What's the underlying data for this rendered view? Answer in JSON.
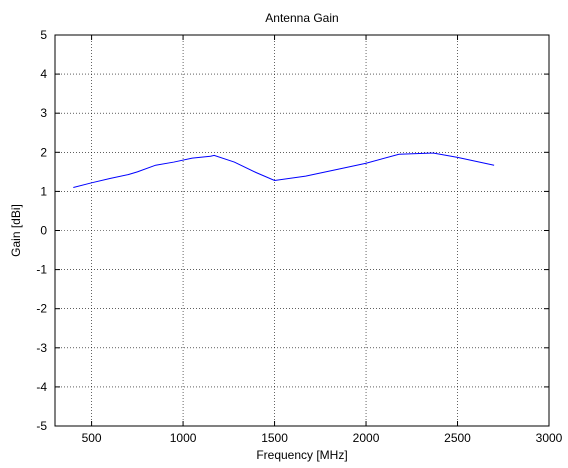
{
  "chart_data": {
    "type": "line",
    "title": "Antenna Gain",
    "xlabel": "Frequency [MHz]",
    "ylabel": "Gain [dBi]",
    "xlim": [
      300,
      3000
    ],
    "ylim": [
      -5,
      5
    ],
    "xticks": [
      500,
      1000,
      1500,
      2000,
      2500,
      3000
    ],
    "yticks": [
      -5,
      -4,
      -3,
      -2,
      -1,
      0,
      1,
      2,
      3,
      4,
      5
    ],
    "grid": true,
    "series": [
      {
        "color": "#0000ff",
        "x": [
          400,
          500,
          600,
          700,
          750,
          850,
          950,
          1050,
          1150,
          1170,
          1280,
          1400,
          1500,
          1670,
          1850,
          2000,
          2180,
          2350,
          2370,
          2500,
          2700
        ],
        "y": [
          1.1,
          1.22,
          1.33,
          1.43,
          1.5,
          1.67,
          1.75,
          1.85,
          1.9,
          1.92,
          1.75,
          1.48,
          1.28,
          1.39,
          1.57,
          1.72,
          1.95,
          1.98,
          1.98,
          1.87,
          1.67
        ]
      }
    ]
  }
}
